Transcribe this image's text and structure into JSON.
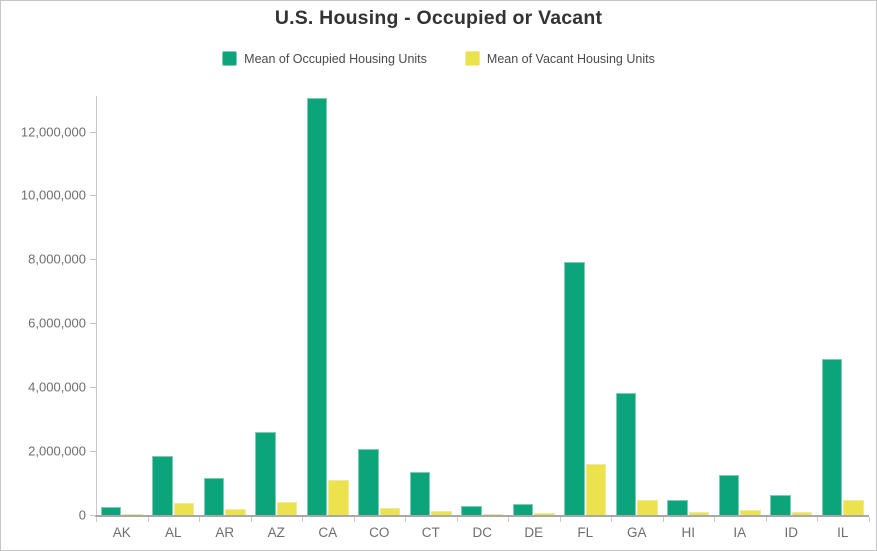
{
  "colors": {
    "title": "#333333",
    "legend_text": "#4a4a4a",
    "axis_text": "#6e6e6e",
    "axis_line": "#c9c9c9",
    "baseline": "#a8a8a8",
    "page_border": "#c6c6c6",
    "occupied_green": "#0ba47b",
    "occupied_green_edge": "#7fccb2",
    "vacant_yellow": "#ece24b",
    "vacant_yellow_edge": "#f2ecA0"
  },
  "chart_data": {
    "type": "bar",
    "title": "U.S. Housing - Occupied or Vacant",
    "xlabel": "",
    "ylabel": "",
    "grid": false,
    "legend_position": "top",
    "categories": [
      "AK",
      "AL",
      "AR",
      "AZ",
      "CA",
      "CO",
      "CT",
      "DC",
      "DE",
      "FL",
      "GA",
      "HI",
      "IA",
      "ID",
      "IL"
    ],
    "series": [
      {
        "name": "Mean of Occupied Housing Units",
        "color": "#0ba47b",
        "edge_color": "#7fccb2",
        "values": [
          240000,
          1860000,
          1150000,
          2610000,
          13060000,
          2080000,
          1360000,
          270000,
          330000,
          7920000,
          3810000,
          460000,
          1250000,
          620000,
          4870000
        ]
      },
      {
        "name": "Mean of Vacant Housing Units",
        "color": "#ece24b",
        "edge_color": "#f0e9a0",
        "values": [
          40000,
          380000,
          200000,
          400000,
          1080000,
          230000,
          140000,
          30000,
          70000,
          1590000,
          480000,
          80000,
          150000,
          90000,
          480000
        ]
      }
    ],
    "y_axis": {
      "min": 0,
      "max": 13200000,
      "ticks": [
        {
          "value": 0,
          "label": "0"
        },
        {
          "value": 2000000,
          "label": "2,000,000"
        },
        {
          "value": 4000000,
          "label": "4,000,000"
        },
        {
          "value": 6000000,
          "label": "6,000,000"
        },
        {
          "value": 8000000,
          "label": "8,000,000"
        },
        {
          "value": 10000000,
          "label": "10,000,000"
        },
        {
          "value": 12000000,
          "label": "12,000,000"
        }
      ]
    }
  }
}
